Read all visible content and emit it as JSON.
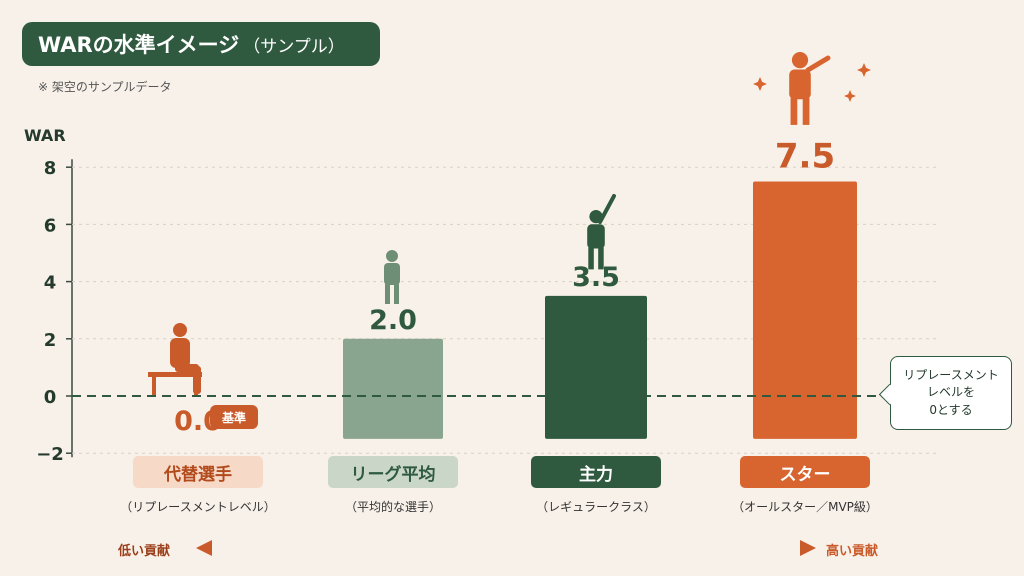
{
  "title": {
    "main": "WARの水準イメージ",
    "paren": "（サンプル）"
  },
  "note": "※ 架空のサンプルデータ",
  "colors": {
    "bg": "#f8f1ea",
    "dark_green": "#2f5a40",
    "sage": "#8aa58f",
    "orange": "#c95a2a",
    "orange_star": "#d8652f",
    "light_orange": "#f6d9c6",
    "light_sage": "#c9d6c8"
  },
  "chart_data": {
    "type": "bar",
    "ylabel": "WAR",
    "ylim": [
      -2,
      8
    ],
    "yticks": [
      -2,
      0,
      2,
      4,
      6,
      8
    ],
    "ytick_labels": [
      "−2",
      "0",
      "2",
      "4",
      "6",
      "8"
    ],
    "grid": true,
    "reference_line": 0,
    "categories": [
      "代替選手",
      "リーグ平均",
      "主力",
      "スター"
    ],
    "subcategories": [
      "（リプレースメントレベル）",
      "（平均的な選手）",
      "（レギュラークラス）",
      "（オールスター／MVP級）"
    ],
    "values": [
      0.0,
      2.0,
      3.5,
      7.5
    ],
    "value_labels": [
      "0.0",
      "2.0",
      "3.5",
      "7.5"
    ],
    "icons": [
      "seated-player-icon",
      "standing-player-icon",
      "batter-icon",
      "star-batter-icon"
    ]
  },
  "annotations": {
    "base_badge": "基準",
    "callout": "リプレースメント\nレベルを\n0とする"
  },
  "bottom_arrow": {
    "left": "低い貢献",
    "right": "高い貢献"
  }
}
